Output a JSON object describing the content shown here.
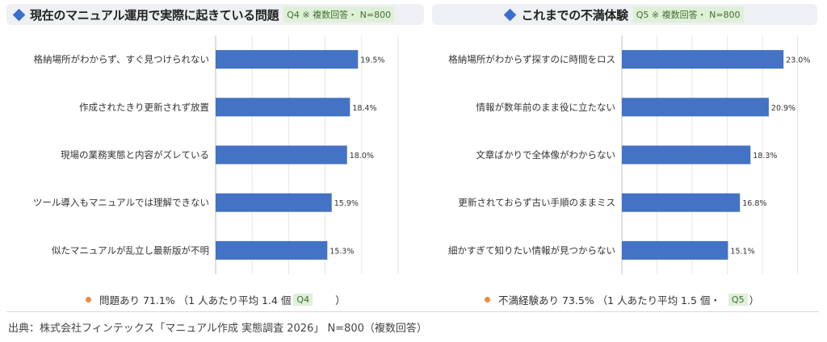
{
  "left_panel": {
    "title": "現在のマニュアル運用で実際に起きている問題",
    "tag": "Q4 ※ 複数回答・ N=800",
    "summary_text": "問題あり 71.1% （1 人あたり平均 1.4 個",
    "summary_tag": "Q4",
    "summary_close": "）"
  },
  "right_panel": {
    "title": "これまでの不満体験",
    "tag": "Q5 ※ 複数回答・ N=800",
    "summary_text": "不満経験あり 73.5% （1 人あたり平均 1.5 個・",
    "summary_tag": "Q5",
    "summary_close": "）"
  },
  "source": "出典：株式会社フィンテックス「マニュアル作成 実態調査 2026」 N=800（複数回答）",
  "colors": {
    "bar": "#4472c4",
    "accent": "#3a6fd0",
    "dot": "#ef8a3c",
    "grid": "#e6e6e6"
  },
  "chart_data": [
    {
      "type": "bar",
      "orientation": "horizontal",
      "categories": [
        "格納場所がわからず、すぐ見つけられない",
        "作成されたきり更新されず放置",
        "現場の業務実態と内容がズレている",
        "ツール導入もマニュアルでは理解できない",
        "似たマニュアルが乱立し最新版が不明"
      ],
      "values": [
        19.5,
        18.4,
        18.0,
        15.9,
        15.3
      ],
      "value_labels": [
        "19.5%",
        "18.4%",
        "18.0%",
        "15.9%",
        "15.3%"
      ],
      "xlim": [
        0,
        25
      ],
      "grid": true
    },
    {
      "type": "bar",
      "orientation": "horizontal",
      "categories": [
        "格納場所がわからず探すのに時間をロス",
        "情報が数年前のまま役に立たない",
        "文章ばかりで全体像がわからない",
        "更新されておらず古い手順のままミス",
        "細かすぎて知りたい情報が見つからない"
      ],
      "values": [
        23.0,
        20.9,
        18.3,
        16.8,
        15.1
      ],
      "value_labels": [
        "23.0%",
        "20.9%",
        "18.3%",
        "16.8%",
        "15.1%"
      ],
      "xlim": [
        0,
        27
      ],
      "grid": true
    }
  ]
}
